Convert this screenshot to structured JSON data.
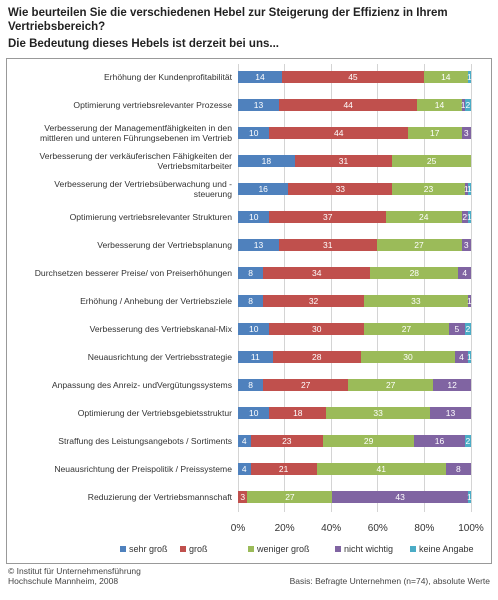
{
  "chart_data": {
    "type": "stacked-bar-horizontal",
    "title": "Wie beurteilen Sie die verschiedenen Hebel zur Steigerung der Effizienz in Ihrem Vertriebsbereich?",
    "subtitle": "Die Bedeutung dieses Hebels ist derzeit bei uns...",
    "categories": [
      "Erhöhung der Kundenprofitabilität",
      "Optimierung vertriebsrelevanter Prozesse",
      "Verbesserung der Managementfähigkeiten in den mittleren und unteren Führungsebenen im Vertrieb",
      "Verbesserung der verkäuferischen Fähigkeiten der Vertriebsmitarbeiter",
      "Verbesserung der Vertriebsüberwachung und -steuerung",
      "Optimierung vertriebsrelevanter Strukturen",
      "Verbesserung der Vertriebsplanung",
      "Durchsetzen besserer Preise/ von Preiserhöhungen",
      "Erhöhung / Anhebung der Vertriebsziele",
      "Verbesserung des Vertriebskanal-Mix",
      "Neuausrichtung der Vertriebsstrategie",
      "Anpassung des Anreiz- undVergütungssystems",
      "Optimierung der Vertriebsgebietsstruktur",
      "Straffung des Leistungsangebots / Sortiments",
      "Neuausrichtung der Preispolitik / Preissysteme",
      "Reduzierung der Vertriebsmannschaft"
    ],
    "series": [
      {
        "name": "sehr groß",
        "color": "#4f81bd",
        "values": [
          14,
          13,
          10,
          18,
          16,
          10,
          13,
          8,
          8,
          10,
          11,
          8,
          10,
          4,
          4,
          0
        ]
      },
      {
        "name": "groß",
        "color": "#c0504d",
        "values": [
          45,
          44,
          44,
          31,
          33,
          37,
          31,
          34,
          32,
          30,
          28,
          27,
          18,
          23,
          21,
          3
        ]
      },
      {
        "name": "weniger groß",
        "color": "#9bbb59",
        "values": [
          14,
          14,
          17,
          25,
          23,
          24,
          27,
          28,
          33,
          27,
          30,
          27,
          33,
          29,
          41,
          27
        ]
      },
      {
        "name": "nicht wichtig",
        "color": "#8064a2",
        "values": [
          0,
          1,
          3,
          0,
          1,
          2,
          3,
          4,
          1,
          5,
          4,
          12,
          13,
          16,
          8,
          43
        ]
      },
      {
        "name": "keine Angabe",
        "color": "#4bacc6",
        "values": [
          1,
          2,
          0,
          0,
          1,
          1,
          0,
          0,
          0,
          2,
          1,
          0,
          0,
          2,
          0,
          1
        ]
      }
    ],
    "xlim": [
      0,
      74
    ],
    "xticks": [
      {
        "value": 0,
        "label": "0%"
      },
      {
        "value": 14.8,
        "label": "20%"
      },
      {
        "value": 29.6,
        "label": "40%"
      },
      {
        "value": 44.4,
        "label": "60%"
      },
      {
        "value": 59.2,
        "label": "80%"
      },
      {
        "value": 74,
        "label": "100%"
      }
    ],
    "grid": true,
    "legend": "bottom",
    "source": "© Institut für Unternehmensführung Hochschule Mannheim, 2008",
    "note": "Basis: Befragte Unternehmen (n=74), absolute Werte"
  }
}
